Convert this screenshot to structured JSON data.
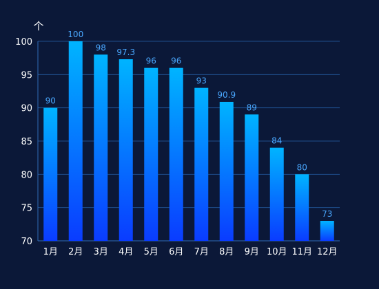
{
  "chart_data": {
    "type": "bar",
    "categories": [
      "1月",
      "2月",
      "3月",
      "4月",
      "5月",
      "6月",
      "7月",
      "8月",
      "9月",
      "10月",
      "11月",
      "12月"
    ],
    "values": [
      90,
      100,
      98,
      97.3,
      96,
      96,
      93,
      90.9,
      89,
      84,
      80,
      73
    ],
    "data_labels": [
      "90",
      "100",
      "98",
      "97.3",
      "96",
      "96",
      "93",
      "90.9",
      "89",
      "84",
      "80",
      "73"
    ],
    "y_ticks": [
      70,
      75,
      80,
      85,
      90,
      95,
      100
    ],
    "ylim": [
      70,
      100
    ],
    "y_axis_unit": "个",
    "title": "",
    "xlabel": "",
    "ylabel": "",
    "grid": true,
    "legend": "none",
    "colors": {
      "background": "#0b1838",
      "bar_top": "#00b4ff",
      "bar_bottom": "#0a3cff",
      "grid": "#1f4e8c",
      "axis": "#2f6bb8",
      "tick_text": "#ffffff",
      "data_label": "#4aa8ff"
    }
  }
}
